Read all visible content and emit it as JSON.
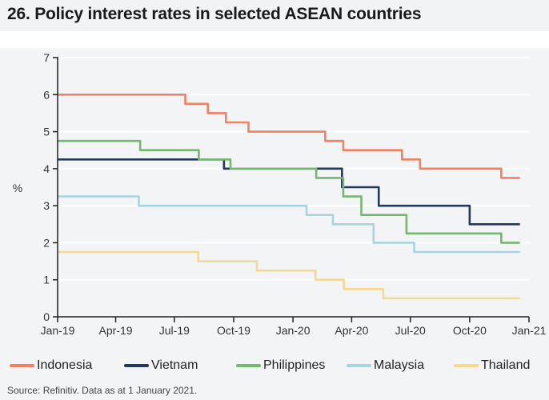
{
  "title": "26. Policy interest rates in selected ASEAN countries",
  "source": "Source: Refinitiv. Data as at 1 January 2021.",
  "chart_data": {
    "type": "line",
    "step": true,
    "ylabel": "%",
    "ylim": [
      0,
      7
    ],
    "yticks": [
      "0",
      "1",
      "2",
      "3",
      "4",
      "5",
      "6",
      "7"
    ],
    "xlim": [
      "2019-01-01",
      "2021-01-01"
    ],
    "xticks": [
      {
        "label": "Jan-19",
        "date": "2019-01-01"
      },
      {
        "label": "Apr-19",
        "date": "2019-04-01"
      },
      {
        "label": "Jul-19",
        "date": "2019-07-01"
      },
      {
        "label": "Oct-19",
        "date": "2019-10-01"
      },
      {
        "label": "Jan-20",
        "date": "2020-01-01"
      },
      {
        "label": "Apr-20",
        "date": "2020-04-01"
      },
      {
        "label": "Jul-20",
        "date": "2020-07-01"
      },
      {
        "label": "Oct-20",
        "date": "2020-10-01"
      },
      {
        "label": "Jan-21",
        "date": "2021-01-01"
      }
    ],
    "grid": true,
    "legend_position": "bottom",
    "end_date": "2020-12-18",
    "series": [
      {
        "name": "Indonesia",
        "color": "#f4805f",
        "steps": [
          [
            "2019-01-01",
            6
          ],
          [
            "2019-07-18",
            5.75
          ],
          [
            "2019-08-22",
            5.5
          ],
          [
            "2019-09-19",
            5.25
          ],
          [
            "2019-10-24",
            5.0
          ],
          [
            "2020-02-20",
            4.75
          ],
          [
            "2020-03-19",
            4.5
          ],
          [
            "2020-06-18",
            4.25
          ],
          [
            "2020-07-16",
            4.0
          ],
          [
            "2020-11-19",
            3.75
          ]
        ]
      },
      {
        "name": "Vietnam",
        "color": "#24395a",
        "steps": [
          [
            "2019-01-01",
            4.25
          ],
          [
            "2019-09-16",
            4.0
          ],
          [
            "2020-03-17",
            3.5
          ],
          [
            "2020-05-13",
            3.0
          ],
          [
            "2020-10-01",
            2.5
          ]
        ]
      },
      {
        "name": "Philippines",
        "color": "#76b76f",
        "steps": [
          [
            "2019-01-01",
            4.75
          ],
          [
            "2019-05-09",
            4.5
          ],
          [
            "2019-08-08",
            4.25
          ],
          [
            "2019-09-26",
            4.0
          ],
          [
            "2020-02-06",
            3.75
          ],
          [
            "2020-03-19",
            3.25
          ],
          [
            "2020-04-16",
            2.75
          ],
          [
            "2020-06-25",
            2.25
          ],
          [
            "2020-11-19",
            2.0
          ]
        ]
      },
      {
        "name": "Malaysia",
        "color": "#a9d4de",
        "steps": [
          [
            "2019-01-01",
            3.25
          ],
          [
            "2019-05-07",
            3.0
          ],
          [
            "2020-01-22",
            2.75
          ],
          [
            "2020-03-03",
            2.5
          ],
          [
            "2020-05-05",
            2.0
          ],
          [
            "2020-07-07",
            1.75
          ]
        ]
      },
      {
        "name": "Thailand",
        "color": "#f5d892",
        "steps": [
          [
            "2019-01-01",
            1.75
          ],
          [
            "2019-08-07",
            1.5
          ],
          [
            "2019-11-06",
            1.25
          ],
          [
            "2020-02-05",
            1.0
          ],
          [
            "2020-03-20",
            0.75
          ],
          [
            "2020-05-20",
            0.5
          ]
        ]
      }
    ]
  }
}
